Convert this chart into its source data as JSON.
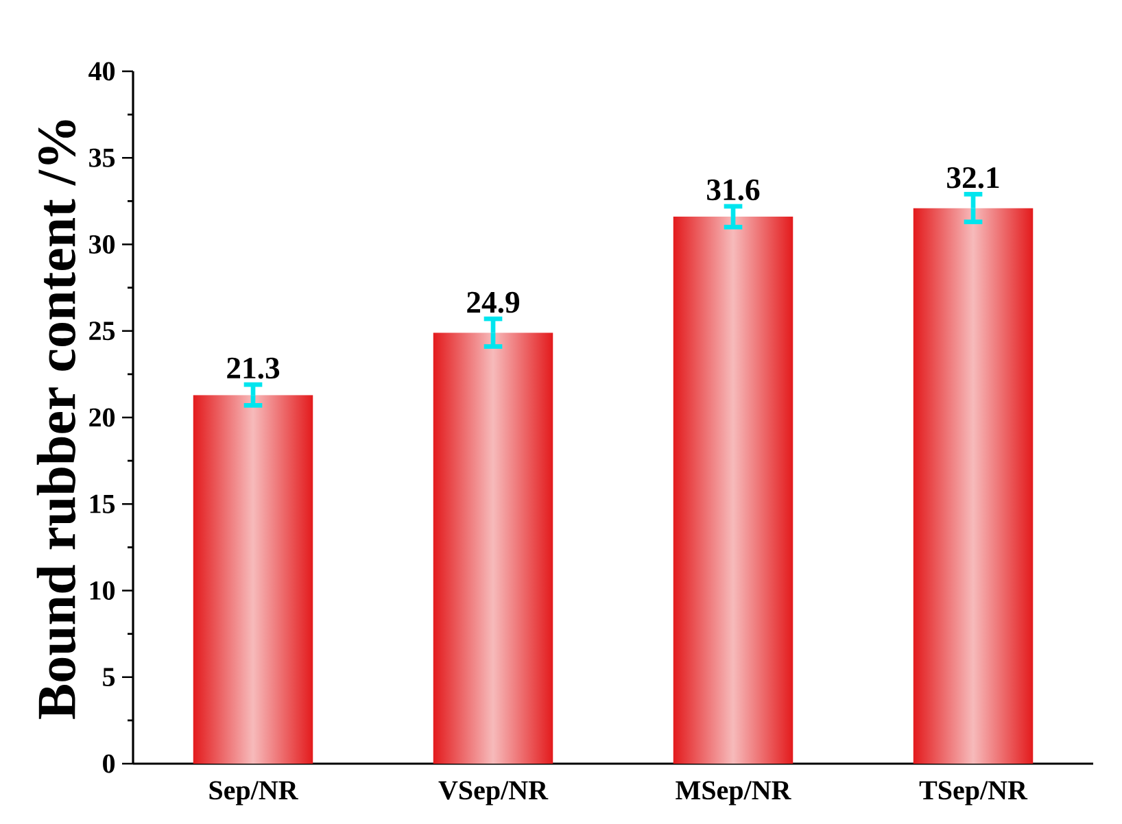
{
  "chart_data": {
    "type": "bar",
    "ylabel": "Bound rubber content /%",
    "categories": [
      "Sep/NR",
      "VSep/NR",
      "MSep/NR",
      "TSep/NR"
    ],
    "values": [
      21.3,
      24.9,
      31.6,
      32.1
    ],
    "errors": [
      0.6,
      0.8,
      0.6,
      0.8
    ],
    "color": "#e31a1c",
    "data_labels": true,
    "ylim": [
      0,
      40
    ],
    "yticks": [
      0,
      5,
      10,
      15,
      20,
      25,
      30,
      35,
      40
    ]
  }
}
